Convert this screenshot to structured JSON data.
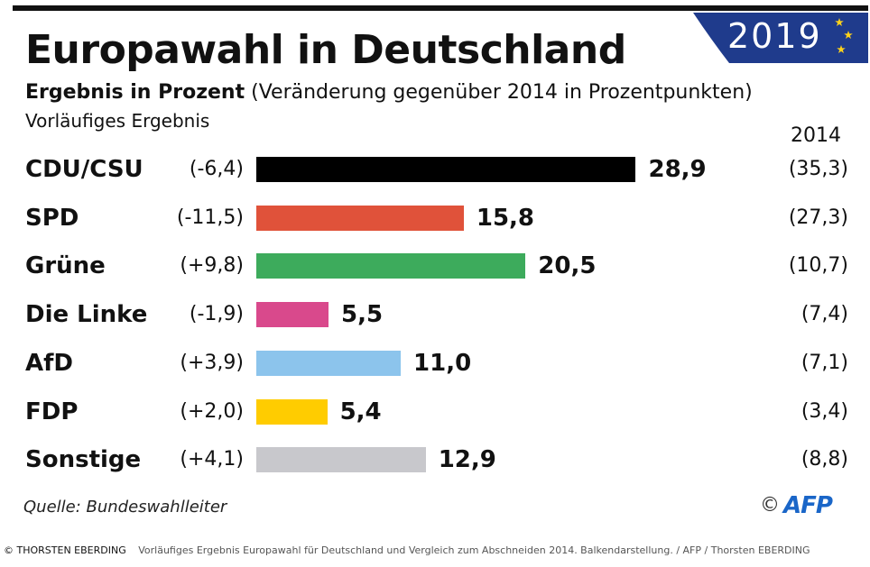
{
  "badge": {
    "year": "2019"
  },
  "header": {
    "title": "Europawahl in Deutschland",
    "subtitle_bold": "Ergebnis in Prozent",
    "subtitle_rest": "(Veränderung gegenüber 2014 in Prozentpunkten)",
    "preliminary": "Vorläufiges Ergebnis",
    "col_2014": "2014"
  },
  "chart_data": {
    "type": "bar",
    "orientation": "horizontal",
    "title": "Europawahl in Deutschland",
    "subtitle": "Ergebnis in Prozent (Veränderung gegenüber 2014 in Prozentpunkten)",
    "xlabel": "",
    "ylabel": "",
    "categories": [
      "CDU/CSU",
      "SPD",
      "Grüne",
      "Die Linke",
      "AfD",
      "FDP",
      "Sonstige"
    ],
    "values": [
      28.9,
      15.8,
      20.5,
      5.5,
      11.0,
      5.4,
      12.9
    ],
    "value_labels": [
      "28,9",
      "15,8",
      "20,5",
      "5,5",
      "11,0",
      "5,4",
      "12,9"
    ],
    "change_labels": [
      "(-6,4)",
      "(-11,5)",
      "(+9,8)",
      "(-1,9)",
      "(+3,9)",
      "(+2,0)",
      "(+4,1)"
    ],
    "previous_2014_labels": [
      "(35,3)",
      "(27,3)",
      "(10,7)",
      "(7,4)",
      "(7,1)",
      "(3,4)",
      "(8,8)"
    ],
    "colors": [
      "#000000",
      "#e0523a",
      "#3dab5c",
      "#d9498c",
      "#8cc4ec",
      "#ffcc00",
      "#c8c8cc"
    ],
    "xlim": [
      0,
      30
    ]
  },
  "footer": {
    "source": "Quelle: Bundeswahlleiter",
    "copyright_symbol": "©",
    "agency": "AFP"
  },
  "caption": {
    "credit": "© THORSTEN EBERDING",
    "text": "Vorläufiges Ergebnis Europawahl für Deutschland und Vergleich zum Abschneiden 2014. Balkendarstellung. / AFP / Thorsten EBERDING"
  }
}
